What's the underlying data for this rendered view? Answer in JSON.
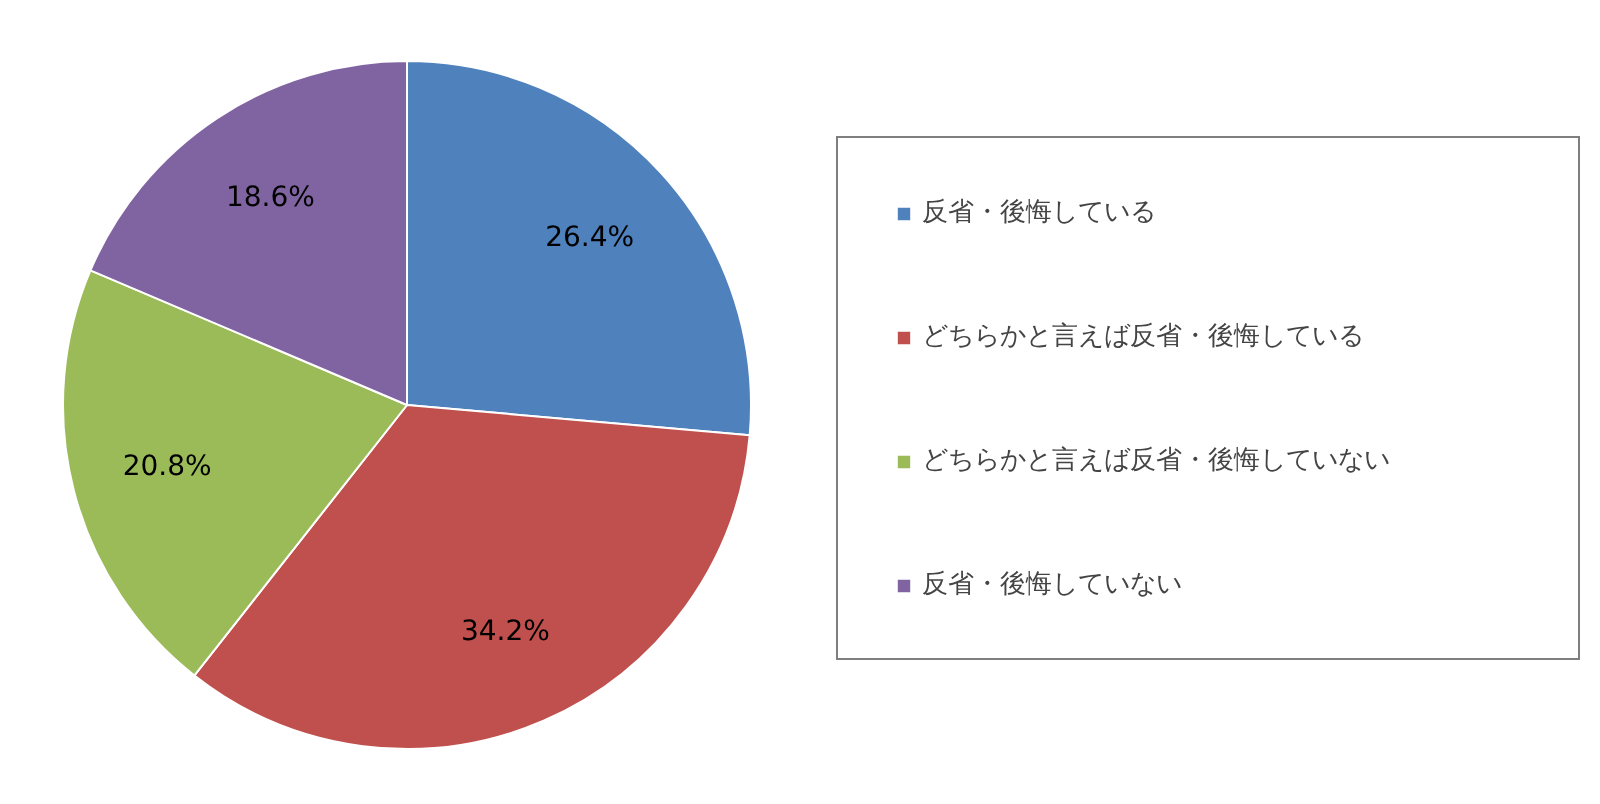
{
  "chart_data": {
    "type": "pie",
    "categories": [
      "反省・後悔している",
      "どちらかと言えば反省・後悔している",
      "どちらかと言えば反省・後悔していない",
      "反省・後悔していない"
    ],
    "values": [
      26.4,
      34.2,
      20.8,
      18.6
    ],
    "colors": [
      "#4f81bd",
      "#c0504d",
      "#9bbb59",
      "#8064a2"
    ],
    "value_labels": [
      "26.4%",
      "34.2%",
      "20.8%",
      "18.6%"
    ],
    "legend": "right"
  }
}
